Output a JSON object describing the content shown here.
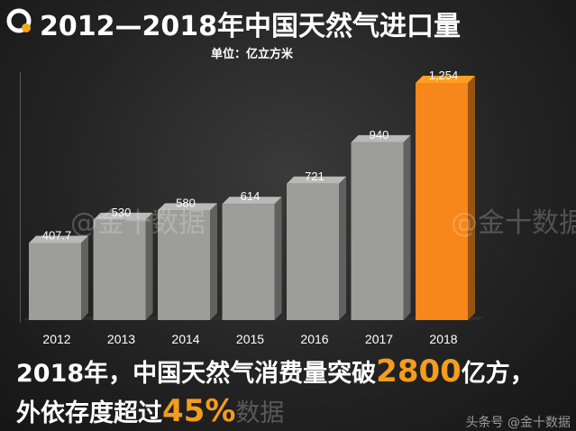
{
  "header": {
    "title": "2012—2018年中国天然气进口量",
    "unit": "单位：亿立方米"
  },
  "watermarks": [
    "@金十数据",
    "@金十数据"
  ],
  "chart_data": {
    "type": "bar",
    "title": "2012—2018年中国天然气进口量",
    "ylabel": "单位：亿立方米",
    "categories": [
      "2012",
      "2013",
      "2014",
      "2015",
      "2016",
      "2017",
      "2018"
    ],
    "values": [
      407.7,
      530,
      580,
      614,
      721,
      940,
      1254
    ],
    "value_labels": [
      "407.7",
      "530",
      "580",
      "614",
      "721",
      "940",
      "1,254"
    ],
    "ylim": [
      0,
      1254
    ],
    "grid": false,
    "colors": {
      "default": "#9d9d9b",
      "highlight": "#f7861b",
      "highlight_index": 6
    }
  },
  "headline": {
    "prefix": "2018年，中国天然气消费量突破",
    "highlight": "2800",
    "suffix": "亿方，"
  },
  "subline": {
    "prefix": "外依存度超过",
    "highlight": "45%",
    "faint": "数据"
  },
  "footer": "头条号 @金十数据"
}
